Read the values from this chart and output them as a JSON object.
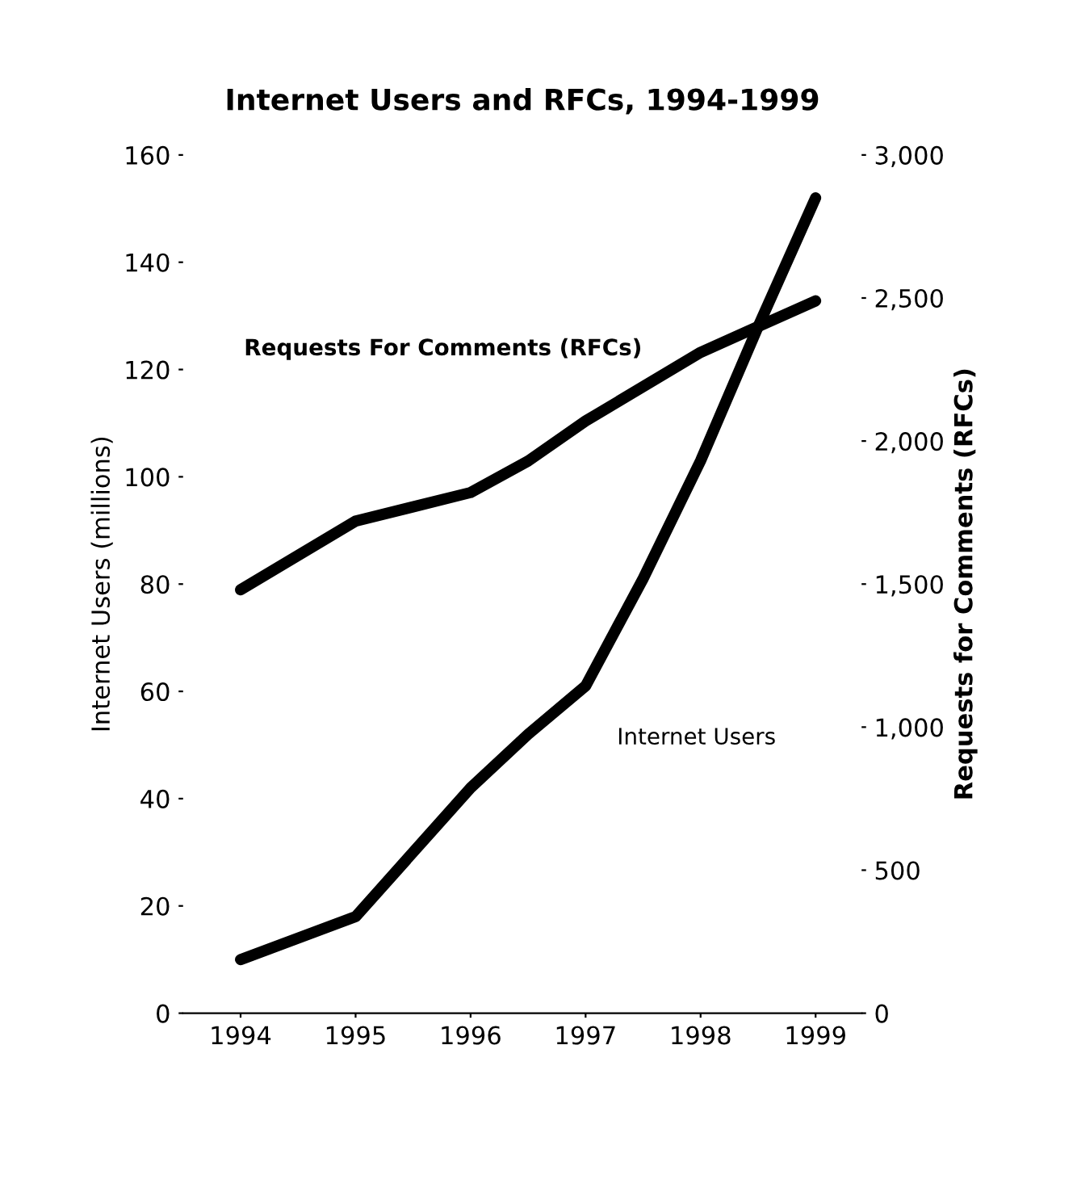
{
  "chart_data": {
    "type": "line",
    "title": "Internet Users and RFCs, 1994-1999",
    "ylabel": "Internet Users (millions)",
    "y2label": "Requests for Comments (RFCs)",
    "xlim": [
      1993.5,
      1999.4
    ],
    "xticks": [
      1994,
      1995,
      1996,
      1997,
      1998,
      1999
    ],
    "ylim": [
      0,
      160
    ],
    "yticks": [
      0,
      20,
      40,
      60,
      80,
      100,
      120,
      140,
      160
    ],
    "y2lim": [
      0,
      3000
    ],
    "y2ticks": [
      {
        "value": 0,
        "label": "0"
      },
      {
        "value": 500,
        "label": "500"
      },
      {
        "value": 1000,
        "label": "1,000"
      },
      {
        "value": 1500,
        "label": "1,500"
      },
      {
        "value": 2000,
        "label": "2,000"
      },
      {
        "value": 2500,
        "label": "2,500"
      },
      {
        "value": 3000,
        "label": "3,000"
      }
    ],
    "grid": false,
    "legend": "upper left",
    "marker": "none",
    "line_style": "solid",
    "series": [
      {
        "name": "Requests For Comments (RFCs)",
        "color": "#000000",
        "axis": "y2",
        "x": [
          1994,
          1995,
          1996,
          1996.5,
          1997,
          1998,
          1998.5,
          1999
        ],
        "values": [
          1480,
          1720,
          1820,
          1930,
          2070,
          2310,
          2400,
          2490
        ]
      },
      {
        "name": "Internet Users",
        "color": "#000000",
        "axis": "y",
        "x": [
          1994,
          1995,
          1996,
          1996.5,
          1997,
          1997.5,
          1998,
          1998.5,
          1999
        ],
        "values": [
          10,
          18,
          42,
          52,
          61,
          81,
          103,
          128,
          152
        ]
      }
    ]
  }
}
